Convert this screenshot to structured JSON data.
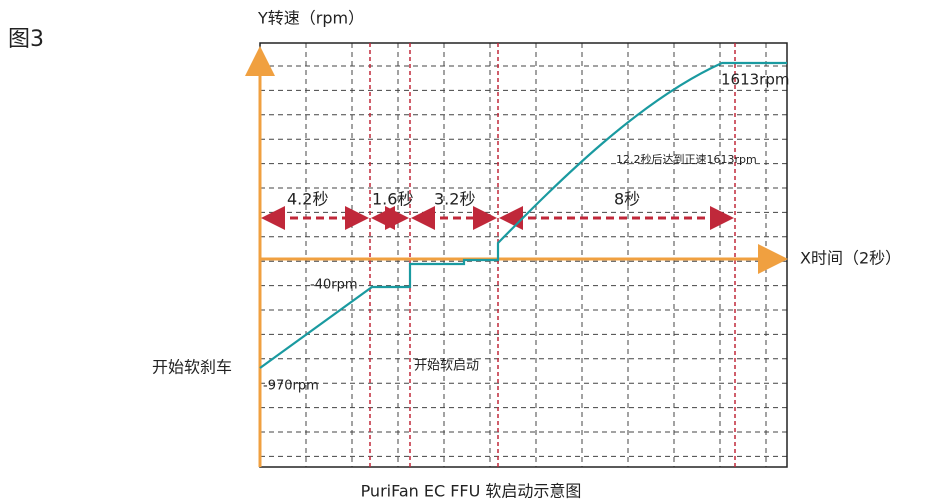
{
  "figure_label": "图3",
  "y_axis_label": "Y转速（rpm）",
  "x_axis_label": "X时间（2秒）",
  "intervals": [
    "4.2秒",
    "1.6秒",
    "3.2秒",
    "8秒"
  ],
  "annotations": {
    "top_speed": "1613rpm",
    "reach_note": "12.2秒后达到正速1613rpm",
    "low_speed": "-40rpm",
    "start_brake": "开始软刹车",
    "start_speed": "-970rpm",
    "start_soft": "开始软启动"
  },
  "caption": "PuriFan EC FFU 软启动示意图"
}
